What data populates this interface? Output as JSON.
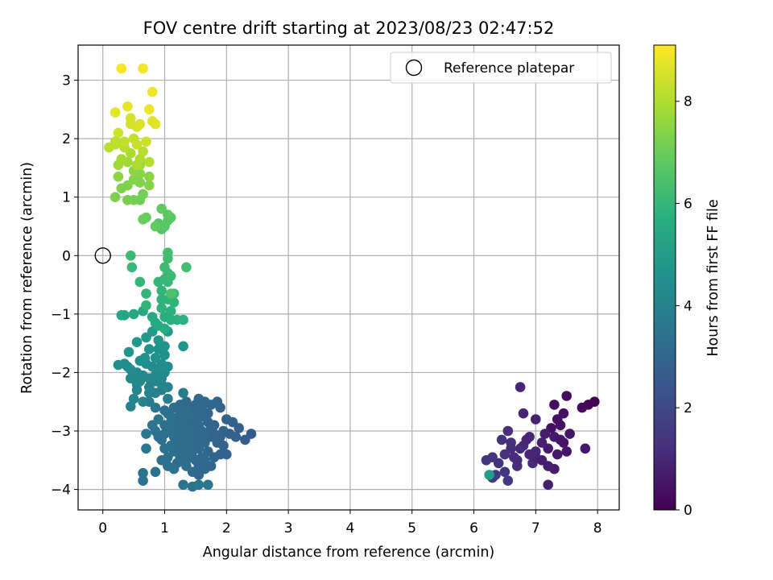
{
  "chart_data": {
    "type": "scatter",
    "title": "FOV centre drift starting at 2023/08/23 02:47:52",
    "xlabel": "Angular distance from reference (arcmin)",
    "ylabel": "Rotation from reference (arcmin)",
    "xlim": [
      -0.4,
      8.35
    ],
    "ylim": [
      -4.35,
      3.6
    ],
    "xticks": [
      0,
      1,
      2,
      3,
      4,
      5,
      6,
      7,
      8
    ],
    "yticks": [
      -4,
      -3,
      -2,
      -1,
      0,
      1,
      2,
      3
    ],
    "grid": true,
    "colormap": "viridis",
    "colorbar": {
      "label": "Hours from first FF file",
      "range": [
        0,
        9.1
      ],
      "ticks": [
        0,
        2,
        4,
        6,
        8
      ]
    },
    "legend": {
      "position": "top-right",
      "entries": [
        "Reference platepar"
      ]
    },
    "reference_point": {
      "x": 0,
      "y": 0
    },
    "clusters": [
      {
        "hours": [
          0.05,
          1.6
        ],
        "x_center": 6.95,
        "y_center": -3.2,
        "x_spread": 0.45,
        "y_spread": 0.4,
        "count": 80
      },
      {
        "hours": [
          2.6,
          3.9
        ],
        "x_center": 1.5,
        "y_center": -3.0,
        "x_spread": 0.35,
        "y_spread": 0.35,
        "count": 150
      },
      {
        "hours": [
          4.0,
          5.2
        ],
        "x_center": 0.7,
        "y_center": -2.15,
        "x_spread": 0.28,
        "y_spread": 0.4,
        "count": 70
      },
      {
        "hours": [
          5.3,
          6.5
        ],
        "x_center": 0.85,
        "y_center": -0.8,
        "x_spread": 0.28,
        "y_spread": 0.45,
        "count": 45
      },
      {
        "hours": [
          6.5,
          7.6
        ],
        "x_center": 0.65,
        "y_center": 0.9,
        "x_spread": 0.3,
        "y_spread": 0.45,
        "count": 45
      },
      {
        "hours": [
          7.6,
          9.0
        ],
        "x_center": 0.55,
        "y_center": 2.1,
        "x_spread": 0.22,
        "y_spread": 0.45,
        "count": 35
      }
    ],
    "points": [
      [
        7.95,
        -2.5,
        0.05
      ],
      [
        7.85,
        -2.55,
        0.1
      ],
      [
        7.75,
        -2.6,
        0.2
      ],
      [
        7.5,
        -2.4,
        0.3
      ],
      [
        7.3,
        -2.55,
        0.35
      ],
      [
        7.45,
        -2.7,
        0.4
      ],
      [
        7.4,
        -2.9,
        0.45
      ],
      [
        7.55,
        -3.05,
        0.5
      ],
      [
        7.8,
        -3.3,
        0.6
      ],
      [
        7.5,
        -3.35,
        0.55
      ],
      [
        7.3,
        -3.1,
        0.6
      ],
      [
        7.2,
        -3.3,
        0.65
      ],
      [
        7.3,
        -3.65,
        0.7
      ],
      [
        7.2,
        -3.6,
        0.75
      ],
      [
        7.2,
        -3.92,
        0.8
      ],
      [
        7.1,
        -3.2,
        0.8
      ],
      [
        7.0,
        -2.8,
        0.85
      ],
      [
        6.8,
        -2.7,
        0.9
      ],
      [
        6.75,
        -2.25,
        0.95
      ],
      [
        6.9,
        -3.1,
        1.0
      ],
      [
        7.0,
        -3.35,
        1.0
      ],
      [
        6.95,
        -3.55,
        1.05
      ],
      [
        6.8,
        -3.25,
        1.1
      ],
      [
        6.7,
        -3.5,
        1.1
      ],
      [
        6.6,
        -3.3,
        1.15
      ],
      [
        6.55,
        -3.0,
        1.2
      ],
      [
        6.45,
        -3.15,
        1.25
      ],
      [
        6.5,
        -3.4,
        1.3
      ],
      [
        6.4,
        -3.55,
        1.3
      ],
      [
        6.3,
        -3.45,
        1.35
      ],
      [
        6.2,
        -3.5,
        1.4
      ],
      [
        6.35,
        -3.75,
        1.45
      ],
      [
        6.5,
        -3.7,
        1.45
      ],
      [
        6.55,
        -3.85,
        1.5
      ],
      [
        6.3,
        -3.8,
        1.5
      ],
      [
        6.25,
        -3.75,
        5.0
      ],
      [
        7.35,
        -2.8,
        0.4
      ],
      [
        7.25,
        -2.95,
        0.45
      ],
      [
        7.4,
        -3.15,
        0.5
      ],
      [
        7.0,
        -3.45,
        0.9
      ],
      [
        6.9,
        -3.4,
        0.95
      ],
      [
        6.65,
        -3.45,
        1.15
      ],
      [
        6.6,
        -3.2,
        1.25
      ],
      [
        7.1,
        -3.5,
        0.75
      ],
      [
        6.85,
        -3.15,
        0.95
      ],
      [
        7.15,
        -3.05,
        0.7
      ],
      [
        6.75,
        -3.3,
        1.05
      ],
      [
        6.7,
        -3.6,
        1.15
      ],
      [
        7.45,
        -3.2,
        0.5
      ],
      [
        7.35,
        -3.4,
        0.6
      ],
      [
        2.4,
        -3.05,
        2.6
      ],
      [
        2.3,
        -3.15,
        2.7
      ],
      [
        2.2,
        -2.95,
        2.75
      ],
      [
        2.1,
        -2.85,
        2.8
      ],
      [
        2.0,
        -2.8,
        2.85
      ],
      [
        1.95,
        -3.0,
        2.9
      ],
      [
        1.85,
        -2.5,
        2.95
      ],
      [
        1.75,
        -2.55,
        3.0
      ],
      [
        1.65,
        -2.5,
        3.05
      ],
      [
        1.55,
        -2.45,
        3.1
      ],
      [
        1.45,
        -2.6,
        3.1
      ],
      [
        1.35,
        -2.5,
        3.15
      ],
      [
        1.25,
        -2.55,
        3.2
      ],
      [
        1.15,
        -2.6,
        3.25
      ],
      [
        1.05,
        -2.7,
        3.25
      ],
      [
        1.7,
        -2.7,
        3.0
      ],
      [
        1.6,
        -2.75,
        3.05
      ],
      [
        1.5,
        -2.8,
        3.1
      ],
      [
        1.4,
        -2.85,
        3.15
      ],
      [
        1.3,
        -2.9,
        3.2
      ],
      [
        1.2,
        -2.95,
        3.25
      ],
      [
        1.1,
        -3.0,
        3.3
      ],
      [
        1.0,
        -3.05,
        3.3
      ],
      [
        0.9,
        -3.1,
        3.35
      ],
      [
        1.8,
        -2.9,
        2.95
      ],
      [
        1.75,
        -3.1,
        3.0
      ],
      [
        1.65,
        -3.2,
        3.05
      ],
      [
        1.55,
        -3.3,
        3.1
      ],
      [
        1.45,
        -3.35,
        3.15
      ],
      [
        1.35,
        -3.4,
        3.2
      ],
      [
        1.25,
        -3.45,
        3.25
      ],
      [
        1.6,
        -3.0,
        3.05
      ],
      [
        1.5,
        -3.05,
        3.1
      ],
      [
        1.4,
        -3.1,
        3.15
      ],
      [
        1.3,
        -3.15,
        3.2
      ],
      [
        1.2,
        -3.2,
        3.25
      ],
      [
        1.1,
        -3.25,
        3.3
      ],
      [
        1.0,
        -3.3,
        3.35
      ],
      [
        1.7,
        -3.35,
        3.0
      ],
      [
        1.8,
        -3.45,
        2.95
      ],
      [
        1.9,
        -3.4,
        2.9
      ],
      [
        2.0,
        -3.4,
        2.85
      ],
      [
        1.75,
        -3.6,
        3.0
      ],
      [
        1.65,
        -3.5,
        3.05
      ],
      [
        1.55,
        -3.6,
        3.1
      ],
      [
        1.45,
        -3.7,
        3.15
      ],
      [
        1.35,
        -3.6,
        3.2
      ],
      [
        1.05,
        -3.45,
        3.3
      ],
      [
        0.95,
        -3.5,
        3.35
      ],
      [
        0.85,
        -3.7,
        3.4
      ],
      [
        0.65,
        -3.72,
        3.45
      ],
      [
        0.65,
        -3.85,
        3.45
      ],
      [
        1.3,
        -3.92,
        3.5
      ],
      [
        1.45,
        -3.95,
        3.5
      ],
      [
        1.55,
        -3.92,
        3.55
      ],
      [
        1.7,
        -3.92,
        3.55
      ],
      [
        0.7,
        -3.3,
        3.6
      ],
      [
        0.7,
        -3.05,
        3.6
      ],
      [
        0.9,
        -2.8,
        3.65
      ],
      [
        0.85,
        -2.6,
        3.65
      ],
      [
        0.75,
        -2.5,
        3.7
      ],
      [
        1.55,
        -2.9,
        3.1
      ],
      [
        1.45,
        -2.95,
        3.15
      ],
      [
        1.35,
        -3.0,
        3.2
      ],
      [
        1.25,
        -3.05,
        3.25
      ],
      [
        1.15,
        -3.1,
        3.3
      ],
      [
        1.9,
        -2.6,
        2.9
      ],
      [
        1.7,
        -2.85,
        3.0
      ],
      [
        1.6,
        -2.6,
        3.05
      ],
      [
        1.5,
        -2.65,
        3.1
      ],
      [
        1.4,
        -2.7,
        3.15
      ],
      [
        1.3,
        -2.75,
        3.2
      ],
      [
        1.2,
        -2.8,
        3.25
      ],
      [
        1.1,
        -2.85,
        3.3
      ],
      [
        1.0,
        -2.9,
        3.35
      ],
      [
        0.95,
        -3.15,
        3.4
      ],
      [
        1.65,
        -3.05,
        3.05
      ],
      [
        1.55,
        -3.15,
        3.1
      ],
      [
        1.45,
        -3.2,
        3.15
      ],
      [
        1.35,
        -3.25,
        3.2
      ],
      [
        1.25,
        -3.3,
        3.25
      ],
      [
        1.15,
        -3.35,
        3.3
      ],
      [
        1.75,
        -2.95,
        3.0
      ],
      [
        1.85,
        -3.2,
        2.95
      ],
      [
        1.95,
        -3.25,
        2.9
      ],
      [
        1.45,
        -3.45,
        3.15
      ],
      [
        1.35,
        -3.5,
        3.2
      ],
      [
        1.6,
        -3.45,
        3.05
      ],
      [
        1.5,
        -3.5,
        3.1
      ],
      [
        1.2,
        -3.55,
        3.25
      ],
      [
        1.1,
        -2.75,
        3.3
      ],
      [
        1.0,
        -2.65,
        3.35
      ],
      [
        1.35,
        -2.65,
        3.2
      ],
      [
        1.25,
        -2.7,
        3.25
      ],
      [
        1.5,
        -2.55,
        3.1
      ],
      [
        1.6,
        -2.55,
        3.05
      ],
      [
        2.05,
        -3.05,
        2.8
      ],
      [
        2.15,
        -3.1,
        2.75
      ],
      [
        1.8,
        -3.05,
        2.95
      ],
      [
        1.9,
        -3.1,
        2.9
      ],
      [
        0.8,
        -2.9,
        3.55
      ],
      [
        0.85,
        -3.0,
        3.5
      ],
      [
        1.05,
        -3.6,
        3.35
      ],
      [
        1.15,
        -3.65,
        3.3
      ],
      [
        1.65,
        -3.65,
        3.05
      ],
      [
        1.55,
        -3.75,
        3.1
      ],
      [
        1.3,
        -2.35,
        3.8
      ],
      [
        1.05,
        -2.45,
        3.85
      ],
      [
        0.95,
        -2.3,
        3.9
      ],
      [
        0.85,
        -2.35,
        3.95
      ],
      [
        0.75,
        -2.35,
        4.0
      ],
      [
        0.65,
        -2.5,
        4.0
      ],
      [
        0.45,
        -2.58,
        4.05
      ],
      [
        0.5,
        -2.45,
        4.1
      ],
      [
        0.55,
        -2.3,
        4.15
      ],
      [
        0.6,
        -2.15,
        4.2
      ],
      [
        0.5,
        -2.1,
        4.25
      ],
      [
        0.55,
        -2.0,
        4.3
      ],
      [
        0.45,
        -1.95,
        4.35
      ],
      [
        0.4,
        -1.9,
        4.4
      ],
      [
        0.35,
        -1.85,
        4.45
      ],
      [
        0.25,
        -1.87,
        4.5
      ],
      [
        0.65,
        -2.05,
        4.3
      ],
      [
        0.75,
        -2.1,
        4.25
      ],
      [
        0.85,
        -2.15,
        4.2
      ],
      [
        0.95,
        -2.2,
        4.15
      ],
      [
        1.05,
        -2.25,
        4.1
      ],
      [
        1.0,
        -2.0,
        4.3
      ],
      [
        0.9,
        -1.95,
        4.35
      ],
      [
        0.8,
        -1.9,
        4.4
      ],
      [
        0.7,
        -1.85,
        4.45
      ],
      [
        0.6,
        -1.8,
        4.5
      ],
      [
        0.68,
        -1.75,
        4.55
      ],
      [
        1.05,
        -1.9,
        4.4
      ],
      [
        0.95,
        -1.85,
        4.45
      ],
      [
        0.85,
        -1.75,
        4.55
      ],
      [
        0.75,
        -1.6,
        4.6
      ],
      [
        0.9,
        -1.6,
        4.6
      ],
      [
        1.0,
        -1.55,
        4.65
      ],
      [
        0.9,
        -1.45,
        4.7
      ],
      [
        0.42,
        -1.65,
        4.75
      ],
      [
        0.55,
        -1.48,
        4.8
      ],
      [
        0.7,
        -1.4,
        4.85
      ],
      [
        0.8,
        -1.3,
        4.9
      ],
      [
        1.05,
        -1.3,
        4.9
      ],
      [
        1.3,
        -1.55,
        4.75
      ],
      [
        0.85,
        -2.05,
        4.25
      ],
      [
        0.75,
        -2.25,
        4.1
      ],
      [
        0.95,
        -2.1,
        4.2
      ],
      [
        0.55,
        -2.2,
        4.2
      ],
      [
        0.45,
        -2.1,
        4.25
      ],
      [
        1.0,
        -1.7,
        4.5
      ],
      [
        0.3,
        -1.02,
        5.3
      ],
      [
        0.35,
        -1.02,
        5.35
      ],
      [
        0.5,
        -1.0,
        5.4
      ],
      [
        0.65,
        -0.95,
        5.45
      ],
      [
        0.8,
        -1.05,
        5.5
      ],
      [
        0.85,
        -1.15,
        5.5
      ],
      [
        0.9,
        -1.2,
        5.55
      ],
      [
        1.0,
        -1.25,
        5.6
      ],
      [
        1.0,
        -1.05,
        5.65
      ],
      [
        1.1,
        -1.1,
        5.7
      ],
      [
        1.2,
        -1.1,
        5.75
      ],
      [
        1.3,
        -1.1,
        5.8
      ],
      [
        1.15,
        -0.8,
        5.85
      ],
      [
        1.05,
        -0.75,
        5.9
      ],
      [
        0.95,
        -0.6,
        5.95
      ],
      [
        0.9,
        -0.45,
        6.0
      ],
      [
        1.0,
        -0.4,
        6.05
      ],
      [
        1.05,
        -0.3,
        6.1
      ],
      [
        1.1,
        -0.35,
        6.15
      ],
      [
        1.0,
        -0.2,
        6.2
      ],
      [
        1.05,
        -0.05,
        6.25
      ],
      [
        1.05,
        0.05,
        6.3
      ],
      [
        0.7,
        -0.85,
        5.9
      ],
      [
        0.7,
        -0.65,
        5.95
      ],
      [
        0.6,
        -0.45,
        6.0
      ],
      [
        0.47,
        -0.2,
        6.1
      ],
      [
        0.45,
        0.0,
        6.15
      ],
      [
        1.35,
        -0.2,
        6.3
      ],
      [
        1.15,
        -0.65,
        6.1
      ],
      [
        0.95,
        -0.9,
        5.8
      ],
      [
        1.1,
        -0.95,
        5.75
      ],
      [
        0.95,
        -0.75,
        5.85
      ],
      [
        1.05,
        -0.45,
        6.05
      ],
      [
        0.95,
        0.45,
        6.6
      ],
      [
        0.9,
        0.55,
        6.65
      ],
      [
        1.0,
        0.5,
        6.7
      ],
      [
        1.1,
        0.65,
        6.75
      ],
      [
        1.05,
        0.7,
        6.8
      ],
      [
        0.95,
        0.8,
        6.85
      ],
      [
        0.85,
        0.5,
        6.9
      ],
      [
        0.7,
        0.65,
        6.95
      ],
      [
        0.65,
        0.62,
        7.0
      ],
      [
        0.6,
        0.95,
        7.05
      ],
      [
        0.65,
        1.05,
        7.1
      ],
      [
        0.5,
        0.95,
        7.15
      ],
      [
        0.4,
        0.95,
        7.2
      ],
      [
        0.2,
        1.0,
        7.25
      ],
      [
        0.3,
        1.15,
        7.3
      ],
      [
        0.4,
        1.2,
        7.3
      ],
      [
        0.5,
        1.3,
        7.35
      ],
      [
        0.6,
        1.25,
        7.35
      ],
      [
        0.75,
        1.2,
        7.4
      ],
      [
        0.75,
        1.35,
        7.45
      ],
      [
        0.6,
        1.4,
        7.45
      ],
      [
        0.5,
        1.45,
        7.5
      ],
      [
        0.25,
        1.35,
        7.5
      ],
      [
        1.05,
        0.6,
        6.75
      ],
      [
        1.1,
        -0.65,
        6.5
      ],
      [
        0.6,
        1.55,
        7.7
      ],
      [
        0.4,
        1.6,
        7.75
      ],
      [
        0.25,
        1.55,
        7.8
      ],
      [
        0.3,
        1.65,
        7.85
      ],
      [
        0.45,
        1.75,
        7.9
      ],
      [
        0.55,
        1.55,
        7.95
      ],
      [
        0.6,
        1.65,
        8.0
      ],
      [
        0.75,
        1.6,
        8.05
      ],
      [
        0.65,
        1.78,
        8.1
      ],
      [
        0.35,
        1.85,
        8.1
      ],
      [
        0.2,
        1.9,
        8.15
      ],
      [
        0.1,
        1.85,
        8.2
      ],
      [
        0.35,
        1.95,
        8.25
      ],
      [
        0.5,
        2.0,
        8.3
      ],
      [
        0.55,
        1.9,
        8.35
      ],
      [
        0.7,
        1.95,
        8.4
      ],
      [
        0.25,
        2.1,
        8.45
      ],
      [
        0.45,
        2.25,
        8.5
      ],
      [
        0.55,
        2.2,
        8.55
      ],
      [
        0.6,
        2.25,
        8.6
      ],
      [
        0.8,
        2.3,
        8.65
      ],
      [
        0.85,
        2.25,
        8.7
      ],
      [
        0.2,
        2.45,
        8.75
      ],
      [
        0.4,
        2.55,
        8.8
      ],
      [
        0.75,
        2.5,
        8.85
      ],
      [
        0.8,
        2.8,
        8.9
      ],
      [
        0.65,
        3.2,
        8.95
      ],
      [
        0.3,
        3.2,
        9.0
      ],
      [
        0.45,
        2.35,
        8.55
      ],
      [
        0.2,
        1.95,
        8.2
      ]
    ]
  }
}
